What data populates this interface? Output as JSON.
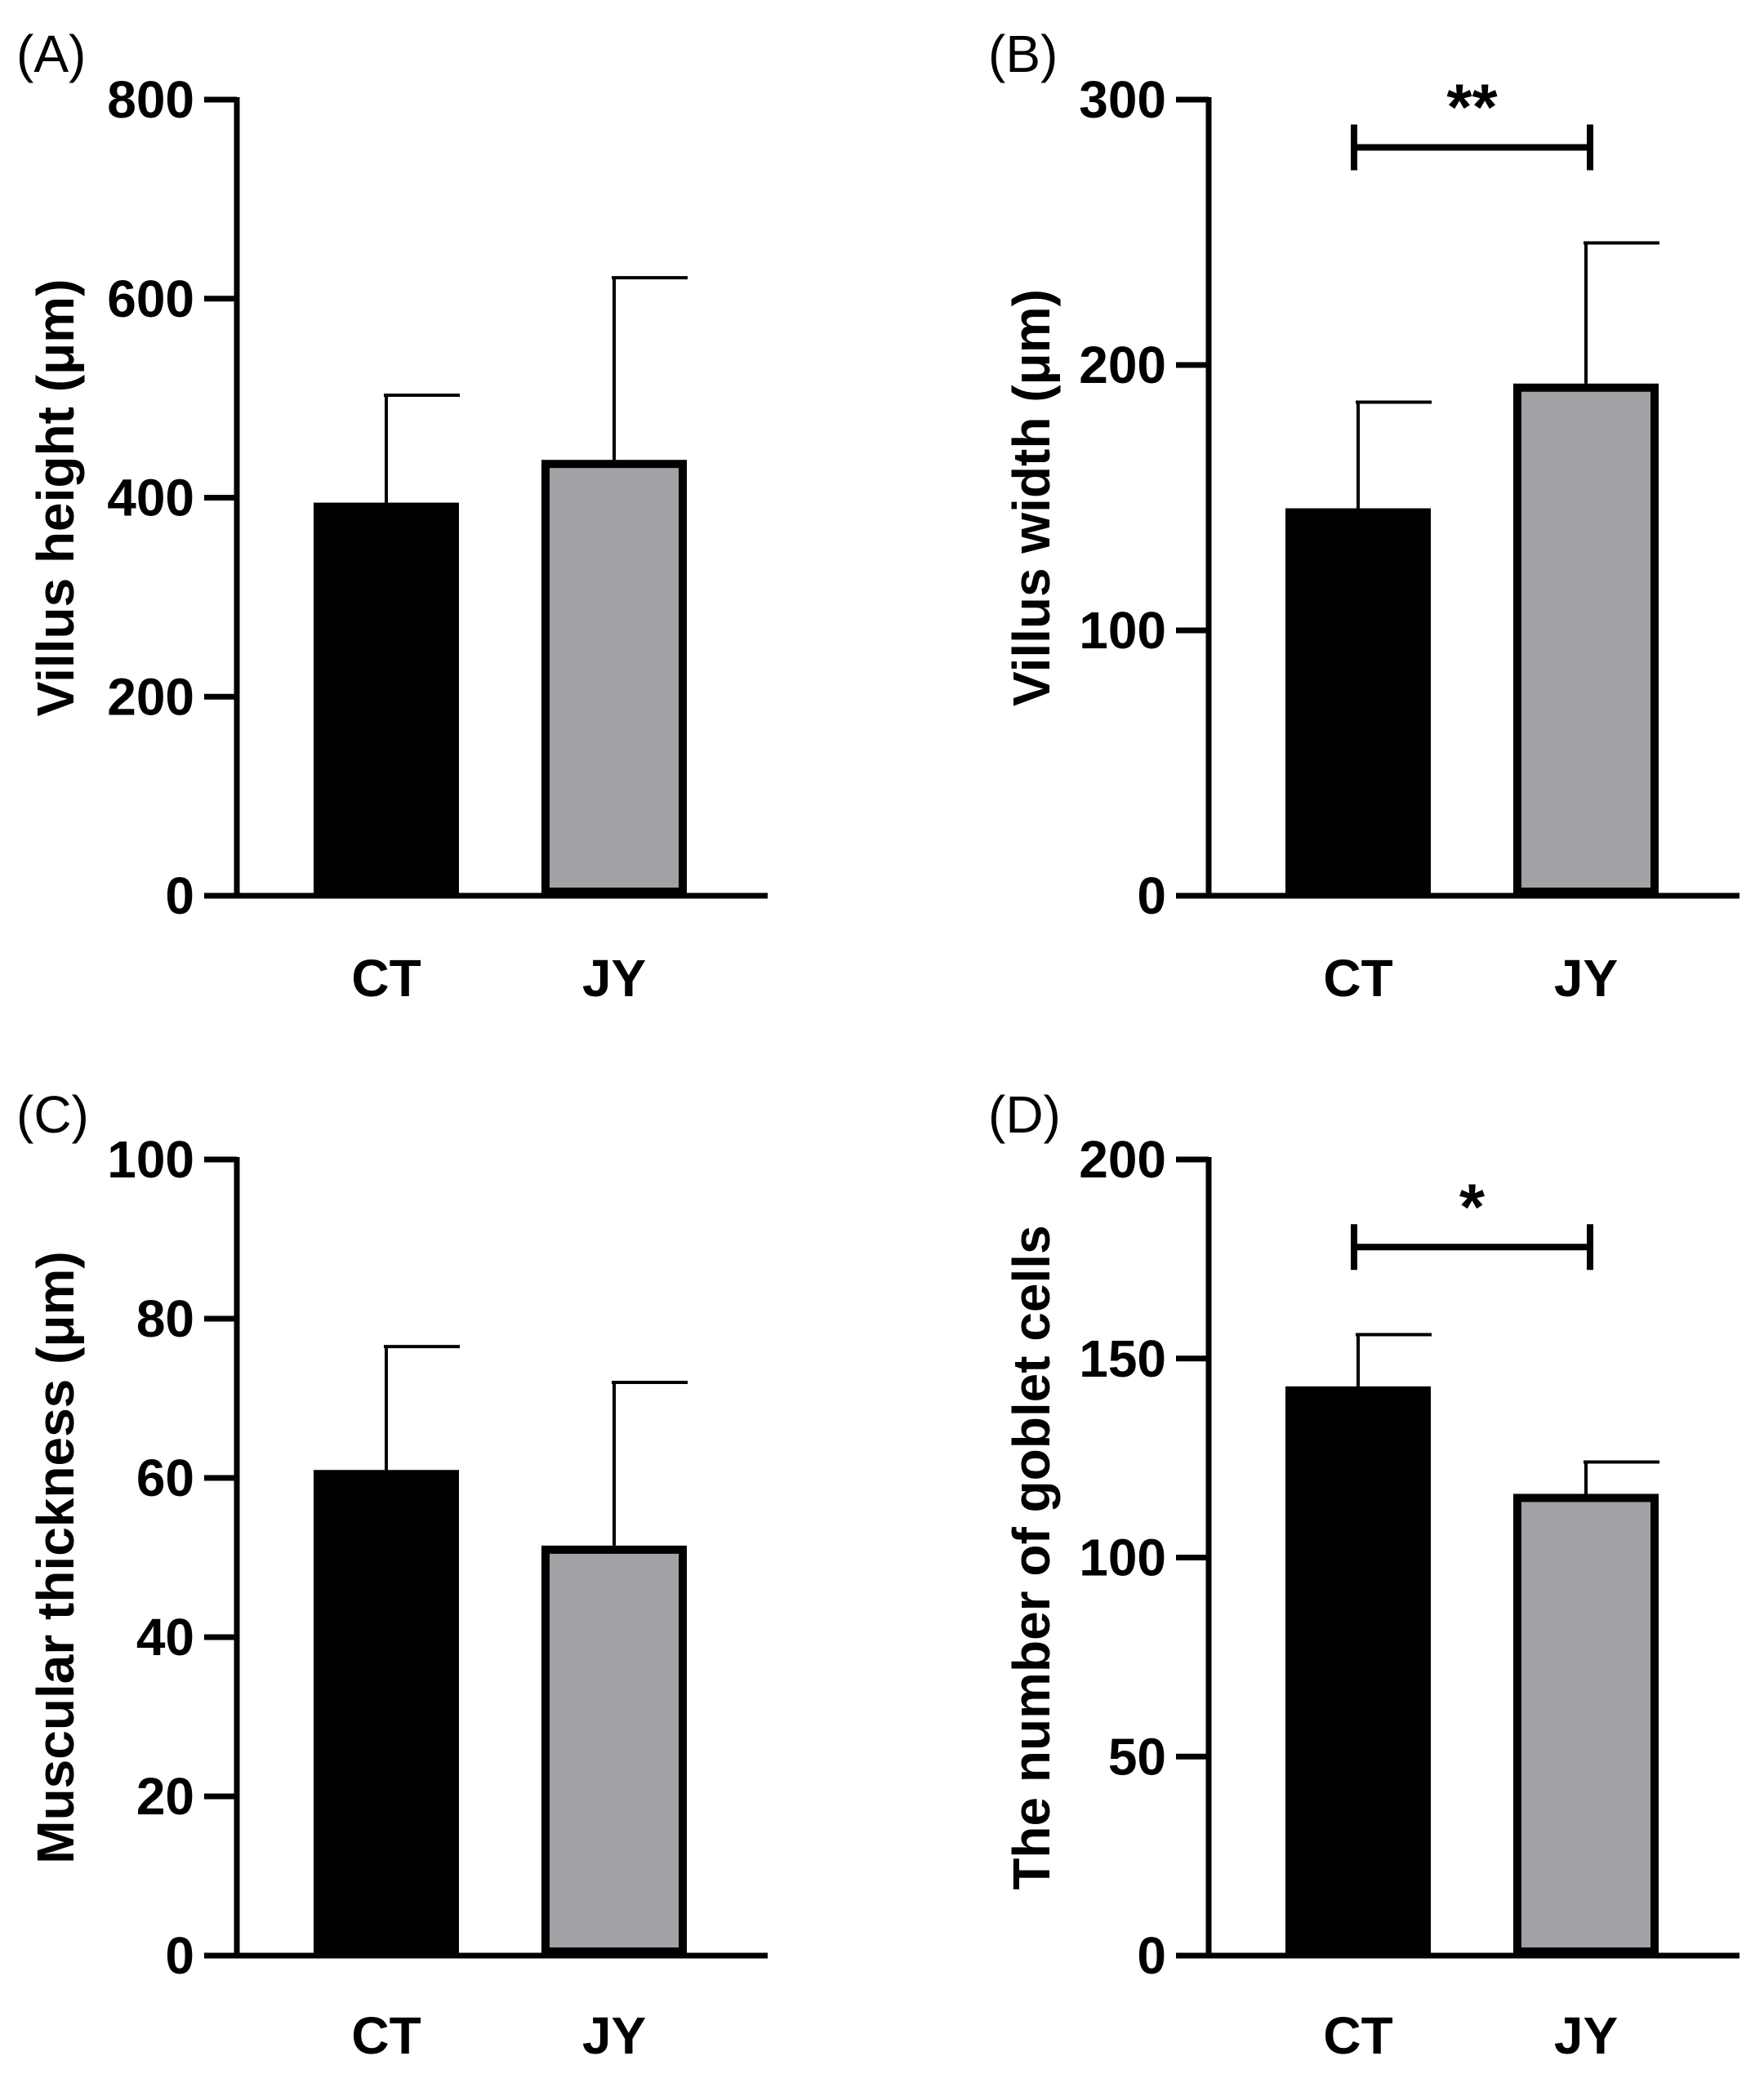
{
  "chart_data": [
    {
      "type": "bar",
      "panel": "(A)",
      "categories": [
        "CT",
        "JY"
      ],
      "values": [
        395,
        438
      ],
      "errors": [
        108,
        183
      ],
      "ylabel": "Villus height (μm)",
      "ylim": [
        0,
        800
      ],
      "yticks": [
        0,
        200,
        400,
        600,
        800
      ],
      "colors": [
        "#000000",
        "#a3a1a6"
      ],
      "significance": null
    },
    {
      "type": "bar",
      "panel": "(B)",
      "categories": [
        "CT",
        "JY"
      ],
      "values": [
        146,
        193
      ],
      "errors": [
        40,
        53
      ],
      "ylabel": "Villus width (μm)",
      "ylim": [
        0,
        300
      ],
      "yticks": [
        0,
        100,
        200,
        300
      ],
      "colors": [
        "#000000",
        "#a3a1a6"
      ],
      "significance": {
        "label": "**",
        "level": 282
      }
    },
    {
      "type": "bar",
      "panel": "(C)",
      "categories": [
        "CT",
        "JY"
      ],
      "values": [
        61,
        51.5
      ],
      "errors": [
        15.5,
        20.5
      ],
      "ylabel": "Muscular thickness (μm)",
      "ylim": [
        0,
        100
      ],
      "yticks": [
        0,
        20,
        40,
        60,
        80,
        100
      ],
      "colors": [
        "#000000",
        "#a3a1a6"
      ],
      "significance": null
    },
    {
      "type": "bar",
      "panel": "(D)",
      "categories": [
        "CT",
        "JY"
      ],
      "values": [
        143,
        116
      ],
      "errors": [
        13,
        8
      ],
      "ylabel": "The number of goblet cells",
      "ylim": [
        0,
        200
      ],
      "yticks": [
        0,
        50,
        100,
        150,
        200
      ],
      "colors": [
        "#000000",
        "#a3a1a6"
      ],
      "significance": {
        "label": "*",
        "level": 178
      }
    }
  ]
}
